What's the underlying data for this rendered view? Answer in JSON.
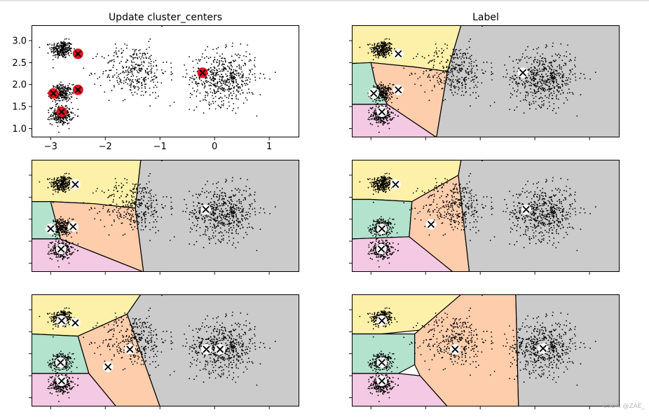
{
  "chart_data": {
    "type": "scatter",
    "figure_titles": {
      "left": "Update cluster_centers",
      "right": "Label"
    },
    "xlim": [
      -3.35,
      1.55
    ],
    "ylim": [
      0.8,
      3.35
    ],
    "xticks": [
      -3,
      -2,
      -1,
      0,
      1
    ],
    "xtick_labels": [
      "−3",
      "−2",
      "−1",
      "0",
      "1"
    ],
    "yticks": [
      1.0,
      1.5,
      2.0,
      2.5,
      3.0
    ],
    "ytick_labels": [
      "1.0",
      "1.5",
      "2.0",
      "2.5",
      "3.0"
    ],
    "blobs": [
      {
        "cx": -2.8,
        "cy": 2.8,
        "sd": 0.1,
        "n": 260
      },
      {
        "cx": -2.8,
        "cy": 1.8,
        "sd": 0.1,
        "n": 260
      },
      {
        "cx": -2.8,
        "cy": 1.3,
        "sd": 0.1,
        "n": 260
      },
      {
        "cx": -1.46,
        "cy": 2.3,
        "sd": 0.3,
        "n": 340
      },
      {
        "cx": 0.15,
        "cy": 2.15,
        "sd": 0.3,
        "n": 560
      }
    ],
    "region_colors": [
      "#fdf0a9",
      "#b3e2cd",
      "#f4c9e3",
      "#fdcdac",
      "#cbcbcb"
    ],
    "panels": [
      {
        "name": "init",
        "title_key": "left",
        "show_regions": false,
        "centroids": [
          [
            -2.5,
            2.7
          ],
          [
            -2.95,
            1.8
          ],
          [
            -2.5,
            1.88
          ],
          [
            -2.8,
            1.38
          ],
          [
            -0.22,
            2.27
          ]
        ]
      },
      {
        "name": "label-1",
        "title_key": "right",
        "show_regions": true,
        "centroids": [
          [
            -2.5,
            2.7
          ],
          [
            -2.95,
            1.8
          ],
          [
            -2.5,
            1.88
          ],
          [
            -2.8,
            1.38
          ],
          [
            -0.22,
            2.27
          ]
        ]
      },
      {
        "name": "update-1",
        "show_regions": true,
        "centroids": [
          [
            -2.55,
            2.79
          ],
          [
            -3.0,
            1.78
          ],
          [
            -2.59,
            1.83
          ],
          [
            -2.81,
            1.32
          ],
          [
            -0.16,
            2.22
          ]
        ]
      },
      {
        "name": "label-2",
        "show_regions": true,
        "centroids": [
          [
            -2.55,
            2.79
          ],
          [
            -2.8,
            1.78
          ],
          [
            -1.9,
            1.88
          ],
          [
            -2.81,
            1.32
          ],
          [
            -0.16,
            2.22
          ]
        ]
      },
      {
        "name": "update-2",
        "show_regions": true,
        "centroids": [
          [
            -2.8,
            2.75
          ],
          [
            -2.55,
            2.7
          ],
          [
            -2.82,
            1.8
          ],
          [
            -1.95,
            1.7
          ],
          [
            -1.55,
            2.1
          ],
          [
            -2.8,
            1.38
          ],
          [
            -0.15,
            2.1
          ],
          [
            0.1,
            2.1
          ]
        ]
      },
      {
        "name": "label-3",
        "show_regions": true,
        "centroids": [
          [
            -2.8,
            2.75
          ],
          [
            -2.8,
            1.8
          ],
          [
            -1.46,
            2.1
          ],
          [
            -2.8,
            1.38
          ],
          [
            0.15,
            2.12
          ]
        ]
      }
    ],
    "region_boundaries": {
      "label-1": {
        "yellow": [
          [
            -3.35,
            3.35
          ],
          [
            -1.35,
            3.35
          ],
          [
            -1.6,
            2.3
          ],
          [
            -2.2,
            2.4
          ],
          [
            -3.0,
            2.5
          ],
          [
            -3.35,
            2.48
          ]
        ],
        "green": [
          [
            -3.35,
            2.48
          ],
          [
            -3.0,
            2.5
          ],
          [
            -2.92,
            2.05
          ],
          [
            -2.7,
            1.55
          ],
          [
            -3.35,
            1.55
          ]
        ],
        "pink": [
          [
            -3.35,
            1.55
          ],
          [
            -2.7,
            1.55
          ],
          [
            -1.8,
            0.8
          ],
          [
            -3.35,
            0.8
          ]
        ],
        "orange": [
          [
            -3.0,
            2.5
          ],
          [
            -2.2,
            2.4
          ],
          [
            -1.6,
            2.3
          ],
          [
            -1.8,
            0.8
          ],
          [
            -2.7,
            1.55
          ],
          [
            -2.92,
            2.05
          ]
        ],
        "gray": [
          [
            -1.35,
            3.35
          ],
          [
            1.55,
            3.35
          ],
          [
            1.55,
            0.8
          ],
          [
            -1.8,
            0.8
          ],
          [
            -1.6,
            2.3
          ]
        ]
      },
      "update-1": {
        "yellow": [
          [
            -3.35,
            3.35
          ],
          [
            -1.35,
            3.35
          ],
          [
            -1.45,
            2.25
          ],
          [
            -2.2,
            2.35
          ],
          [
            -3.0,
            2.4
          ],
          [
            -3.35,
            2.4
          ]
        ],
        "green": [
          [
            -3.35,
            2.4
          ],
          [
            -3.0,
            2.4
          ],
          [
            -2.82,
            1.55
          ],
          [
            -3.35,
            1.55
          ]
        ],
        "pink": [
          [
            -3.35,
            1.55
          ],
          [
            -2.82,
            1.55
          ],
          [
            -1.3,
            0.8
          ],
          [
            -3.35,
            0.8
          ]
        ],
        "orange": [
          [
            -3.0,
            2.4
          ],
          [
            -2.2,
            2.35
          ],
          [
            -1.45,
            2.25
          ],
          [
            -1.3,
            0.8
          ],
          [
            -2.82,
            1.55
          ]
        ],
        "gray": [
          [
            -1.35,
            3.35
          ],
          [
            1.55,
            3.35
          ],
          [
            1.55,
            0.8
          ],
          [
            -1.3,
            0.8
          ],
          [
            -1.45,
            2.25
          ]
        ]
      },
      "label-2": {
        "yellow": [
          [
            -3.35,
            3.35
          ],
          [
            -1.35,
            3.35
          ],
          [
            -1.4,
            3.0
          ],
          [
            -2.25,
            2.4
          ],
          [
            -3.0,
            2.45
          ],
          [
            -3.35,
            2.45
          ]
        ],
        "green": [
          [
            -3.35,
            2.45
          ],
          [
            -3.0,
            2.45
          ],
          [
            -2.25,
            2.4
          ],
          [
            -2.3,
            1.6
          ],
          [
            -3.35,
            1.55
          ]
        ],
        "pink": [
          [
            -3.35,
            1.55
          ],
          [
            -2.3,
            1.6
          ],
          [
            -1.5,
            0.8
          ],
          [
            -3.35,
            0.8
          ]
        ],
        "orange": [
          [
            -2.25,
            2.4
          ],
          [
            -1.4,
            3.0
          ],
          [
            -1.2,
            0.8
          ],
          [
            -1.5,
            0.8
          ],
          [
            -2.3,
            1.6
          ]
        ],
        "gray": [
          [
            -1.35,
            3.35
          ],
          [
            1.55,
            3.35
          ],
          [
            1.55,
            0.8
          ],
          [
            -1.2,
            0.8
          ],
          [
            -1.4,
            3.0
          ]
        ]
      },
      "update-2": {
        "yellow": [
          [
            -3.35,
            3.35
          ],
          [
            -1.35,
            3.35
          ],
          [
            -1.6,
            2.9
          ],
          [
            -2.5,
            2.4
          ],
          [
            -3.35,
            2.45
          ]
        ],
        "green": [
          [
            -3.35,
            2.45
          ],
          [
            -2.5,
            2.4
          ],
          [
            -2.3,
            1.55
          ],
          [
            -3.35,
            1.55
          ]
        ],
        "pink": [
          [
            -3.35,
            1.55
          ],
          [
            -2.3,
            1.55
          ],
          [
            -1.8,
            0.8
          ],
          [
            -3.35,
            0.8
          ]
        ],
        "orange": [
          [
            -2.5,
            2.4
          ],
          [
            -1.6,
            2.9
          ],
          [
            -1.0,
            0.8
          ],
          [
            -1.8,
            0.8
          ],
          [
            -2.3,
            1.55
          ]
        ],
        "gray": [
          [
            -1.35,
            3.35
          ],
          [
            1.55,
            3.35
          ],
          [
            1.55,
            0.8
          ],
          [
            -1.0,
            0.8
          ],
          [
            -1.6,
            2.9
          ]
        ]
      },
      "label-3": {
        "yellow": [
          [
            -3.35,
            3.35
          ],
          [
            -1.35,
            3.35
          ],
          [
            -2.0,
            2.55
          ],
          [
            -2.8,
            2.45
          ],
          [
            -3.35,
            2.45
          ]
        ],
        "green": [
          [
            -3.35,
            2.45
          ],
          [
            -2.2,
            2.45
          ],
          [
            -2.2,
            1.75
          ],
          [
            -2.5,
            1.55
          ],
          [
            -3.35,
            1.55
          ]
        ],
        "pink": [
          [
            -3.35,
            1.55
          ],
          [
            -2.5,
            1.55
          ],
          [
            -2.1,
            1.5
          ],
          [
            -1.6,
            0.8
          ],
          [
            -3.35,
            0.8
          ]
        ],
        "orange": [
          [
            -2.2,
            2.45
          ],
          [
            -1.35,
            3.35
          ],
          [
            -0.35,
            3.35
          ],
          [
            -0.3,
            0.8
          ],
          [
            -1.6,
            0.8
          ],
          [
            -2.1,
            1.5
          ],
          [
            -2.2,
            1.75
          ]
        ],
        "gray": [
          [
            -0.35,
            3.35
          ],
          [
            1.55,
            3.35
          ],
          [
            1.55,
            0.8
          ],
          [
            -0.3,
            0.8
          ]
        ]
      }
    }
  },
  "watermark": "CSDN @ZAE_"
}
